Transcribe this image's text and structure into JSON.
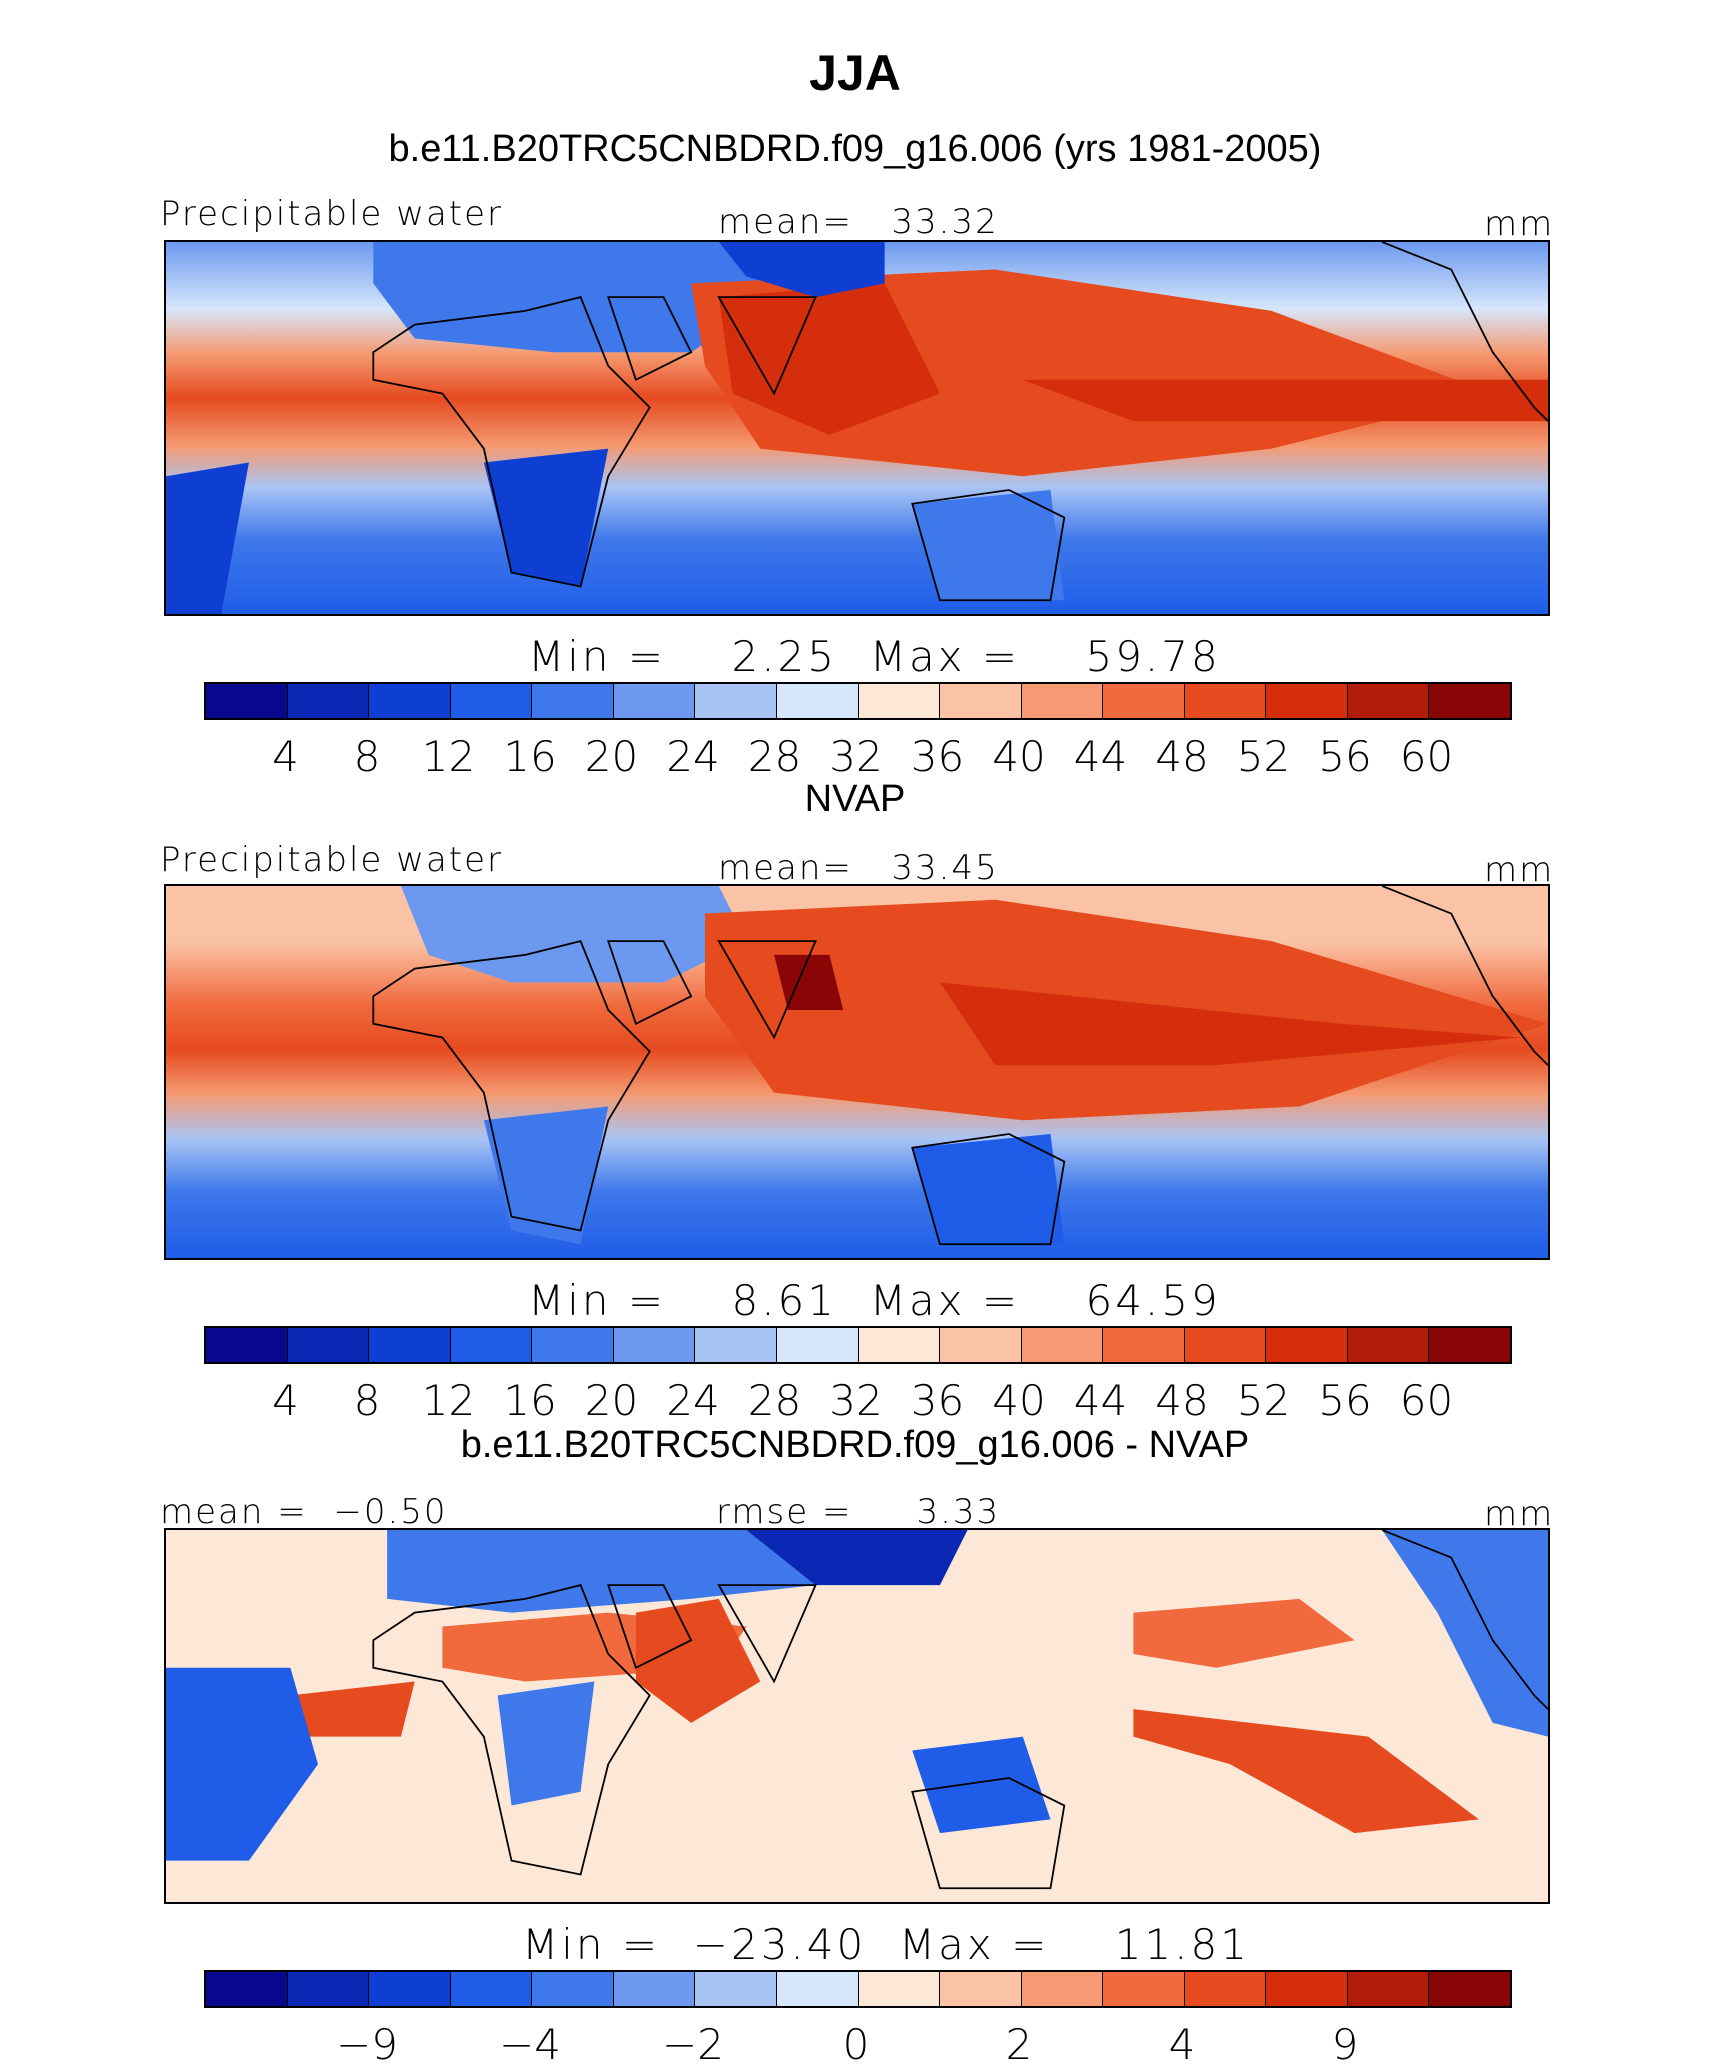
{
  "figure": {
    "season": "JJA",
    "model_title": "b.e11.B20TRC5CNBDRD.f09_g16.006 (yrs 1981-2005)",
    "obs_title": "NVAP",
    "diff_title": "b.e11.B20TRC5CNBDRD.f09_g16.006 - NVAP"
  },
  "colors": {
    "scale": [
      "#08088e",
      "#0a28b4",
      "#0f3fd2",
      "#1f5de8",
      "#3f78ea",
      "#6c99ef",
      "#a8c4f5",
      "#d6e6fb",
      "#fde8d8",
      "#fac3a6",
      "#f59a72",
      "#f06a3e",
      "#e64a1f",
      "#d42e0c",
      "#b11d0a",
      "#8a0606"
    ]
  },
  "panels": {
    "model": {
      "left_label": "Precipitable water",
      "stat_label": "mean=",
      "stat_value": "33.32",
      "units": "mm",
      "min_label": "Min =",
      "min_value": "2.25",
      "max_label": "Max =",
      "max_value": "59.78",
      "ticks": [
        "4",
        "8",
        "12",
        "16",
        "20",
        "24",
        "28",
        "32",
        "36",
        "40",
        "44",
        "48",
        "52",
        "56",
        "60"
      ]
    },
    "obs": {
      "left_label": "Precipitable water",
      "stat_label": "mean=",
      "stat_value": "33.45",
      "units": "mm",
      "min_label": "Min =",
      "min_value": "8.61",
      "max_label": "Max =",
      "max_value": "64.59",
      "ticks": [
        "4",
        "8",
        "12",
        "16",
        "20",
        "24",
        "28",
        "32",
        "36",
        "40",
        "44",
        "48",
        "52",
        "56",
        "60"
      ]
    },
    "diff": {
      "left_label": "mean =",
      "left_value": "−0.50",
      "stat_label": "rmse =",
      "stat_value": "3.33",
      "units": "mm",
      "min_label": "Min =",
      "min_value": "−23.40",
      "max_label": "Max =",
      "max_value": "11.81",
      "ticks": [
        "−9",
        "−4",
        "−2",
        "0",
        "2",
        "4",
        "9"
      ]
    }
  }
}
